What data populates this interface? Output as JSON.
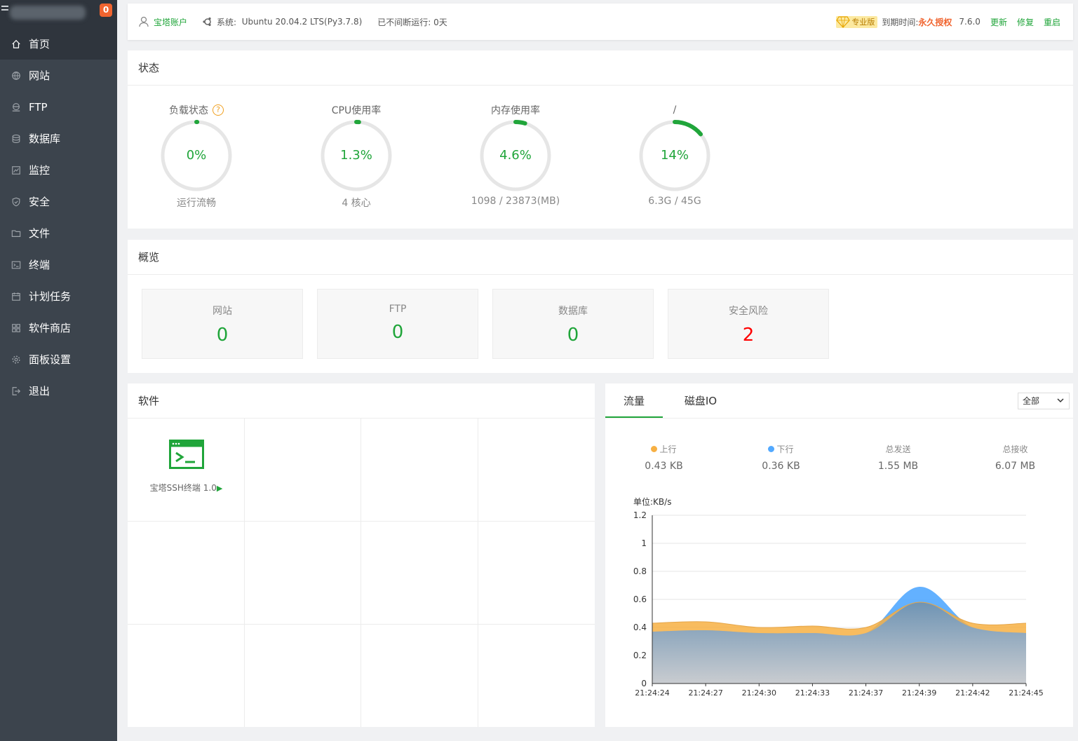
{
  "sidebar": {
    "badge": "0",
    "items": [
      {
        "label": "首页",
        "icon": "home-icon",
        "active": true
      },
      {
        "label": "网站",
        "icon": "globe-icon"
      },
      {
        "label": "FTP",
        "icon": "ftp-icon"
      },
      {
        "label": "数据库",
        "icon": "database-icon"
      },
      {
        "label": "监控",
        "icon": "monitor-icon"
      },
      {
        "label": "安全",
        "icon": "shield-icon"
      },
      {
        "label": "文件",
        "icon": "folder-icon"
      },
      {
        "label": "终端",
        "icon": "terminal-icon"
      },
      {
        "label": "计划任务",
        "icon": "calendar-icon"
      },
      {
        "label": "软件商店",
        "icon": "grid-icon"
      },
      {
        "label": "面板设置",
        "icon": "gear-icon"
      },
      {
        "label": "退出",
        "icon": "logout-icon"
      }
    ]
  },
  "header": {
    "account": "宝塔账户",
    "system_label": "系统:",
    "system_value": "Ubuntu 20.04.2 LTS(Py3.7.8)",
    "uptime": "已不间断运行: 0天",
    "edition": "专业版",
    "expire_label": "到期时间:",
    "expire_value": "永久授权",
    "version": "7.6.0",
    "update": "更新",
    "repair": "修复",
    "restart": "重启"
  },
  "status": {
    "title": "状态",
    "gauges": [
      {
        "title": "负载状态",
        "value": "0%",
        "percent": 0,
        "sub": "运行流畅",
        "help": "?"
      },
      {
        "title": "CPU使用率",
        "value": "1.3%",
        "percent": 1.3,
        "sub": "4 核心"
      },
      {
        "title": "内存使用率",
        "value": "4.6%",
        "percent": 4.6,
        "sub": "1098 / 23873(MB)"
      },
      {
        "title": "/",
        "value": "14%",
        "percent": 14,
        "sub": "6.3G / 45G"
      }
    ]
  },
  "overview": {
    "title": "概览",
    "cards": [
      {
        "label": "网站",
        "value": "0"
      },
      {
        "label": "FTP",
        "value": "0"
      },
      {
        "label": "数据库",
        "value": "0"
      },
      {
        "label": "安全风险",
        "value": "2"
      }
    ]
  },
  "software": {
    "title": "软件",
    "apps": [
      {
        "name": "宝塔SSH终端 1.0",
        "play": "▶"
      }
    ]
  },
  "traffic": {
    "tabs": [
      "流量",
      "磁盘IO"
    ],
    "select": "全部",
    "stats": [
      {
        "label": "上行",
        "value": "0.43 KB",
        "color": "#f7b043"
      },
      {
        "label": "下行",
        "value": "0.36 KB",
        "color": "#52a9ff"
      },
      {
        "label": "总发送",
        "value": "1.55 MB"
      },
      {
        "label": "总接收",
        "value": "6.07 MB"
      }
    ],
    "unit": "单位:KB/s"
  },
  "chart_data": {
    "type": "area",
    "ylabel": "单位:KB/s",
    "ylim": [
      0,
      1.2
    ],
    "yticks": [
      "1.2",
      "1",
      "0.8",
      "0.6",
      "0.4",
      "0.2",
      "0"
    ],
    "x": [
      "21:24:24",
      "21:24:27",
      "21:24:30",
      "21:24:33",
      "21:24:37",
      "21:24:39",
      "21:24:42",
      "21:24:45"
    ],
    "series": [
      {
        "name": "上行",
        "color": "#f7b043",
        "values": [
          0.43,
          0.44,
          0.4,
          0.41,
          0.4,
          0.58,
          0.43,
          0.43
        ]
      },
      {
        "name": "下行",
        "color": "#52a9ff",
        "values": [
          0.37,
          0.38,
          0.36,
          0.36,
          0.36,
          0.69,
          0.4,
          0.36
        ]
      }
    ]
  }
}
